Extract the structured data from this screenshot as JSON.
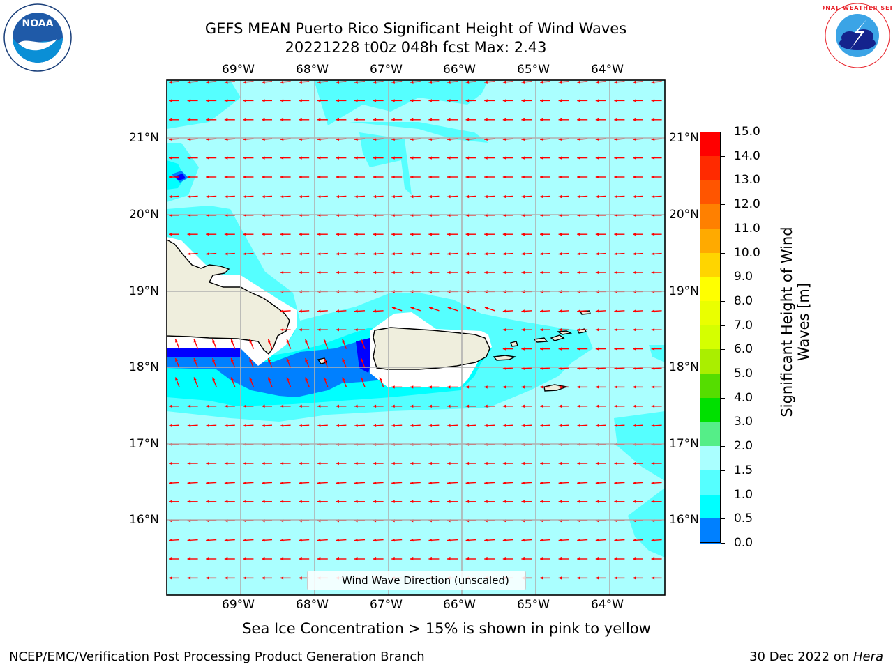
{
  "title": {
    "line1": "GEFS MEAN Puerto Rico Significant Height of Wind Waves",
    "line2": "20221228 t00z 048h fcst   Max: 2.43"
  },
  "map": {
    "lon_labels": [
      "69°W",
      "68°W",
      "67°W",
      "66°W",
      "65°W",
      "64°W"
    ],
    "lat_labels": [
      "21°N",
      "20°N",
      "19°N",
      "18°N",
      "17°N",
      "16°N"
    ],
    "legend_label": "Wind Wave Direction (unscaled)",
    "arrow_color": "#ff0000",
    "land_color": "#efeedd",
    "grid_color": "#b0b0b0"
  },
  "colorbar": {
    "title": "Significant Height of Wind Waves [m]",
    "title_line1": "Significant Height of Wind",
    "title_line2": "Waves [m]",
    "labels": [
      "15.0",
      "14.0",
      "13.0",
      "12.0",
      "11.0",
      "10.0",
      "9.0",
      "8.0",
      "7.0",
      "6.0",
      "5.0",
      "4.0",
      "3.0",
      "2.0",
      "1.5",
      "1.0",
      "0.5",
      "0.0"
    ],
    "colors": [
      "#ff0000",
      "#ff2a00",
      "#ff5500",
      "#ff8000",
      "#ffaa00",
      "#ffd500",
      "#ffff00",
      "#eaff00",
      "#d5ff00",
      "#aaee00",
      "#55dd00",
      "#00e000",
      "#55ee88",
      "#aaffff",
      "#55ffff",
      "#00ffff",
      "#0080ff",
      "#0000ff"
    ]
  },
  "notes": {
    "sea_ice": "Sea Ice Concentration > 15% is shown in pink to yellow",
    "credit": "NCEP/EMC/Verification Post Processing Product Generation Branch",
    "date": "30 Dec 2022 on ",
    "host": "Hera"
  },
  "logos": {
    "noaa": "NOAA",
    "nws": "NATIONAL WEATHER SERVICE"
  }
}
